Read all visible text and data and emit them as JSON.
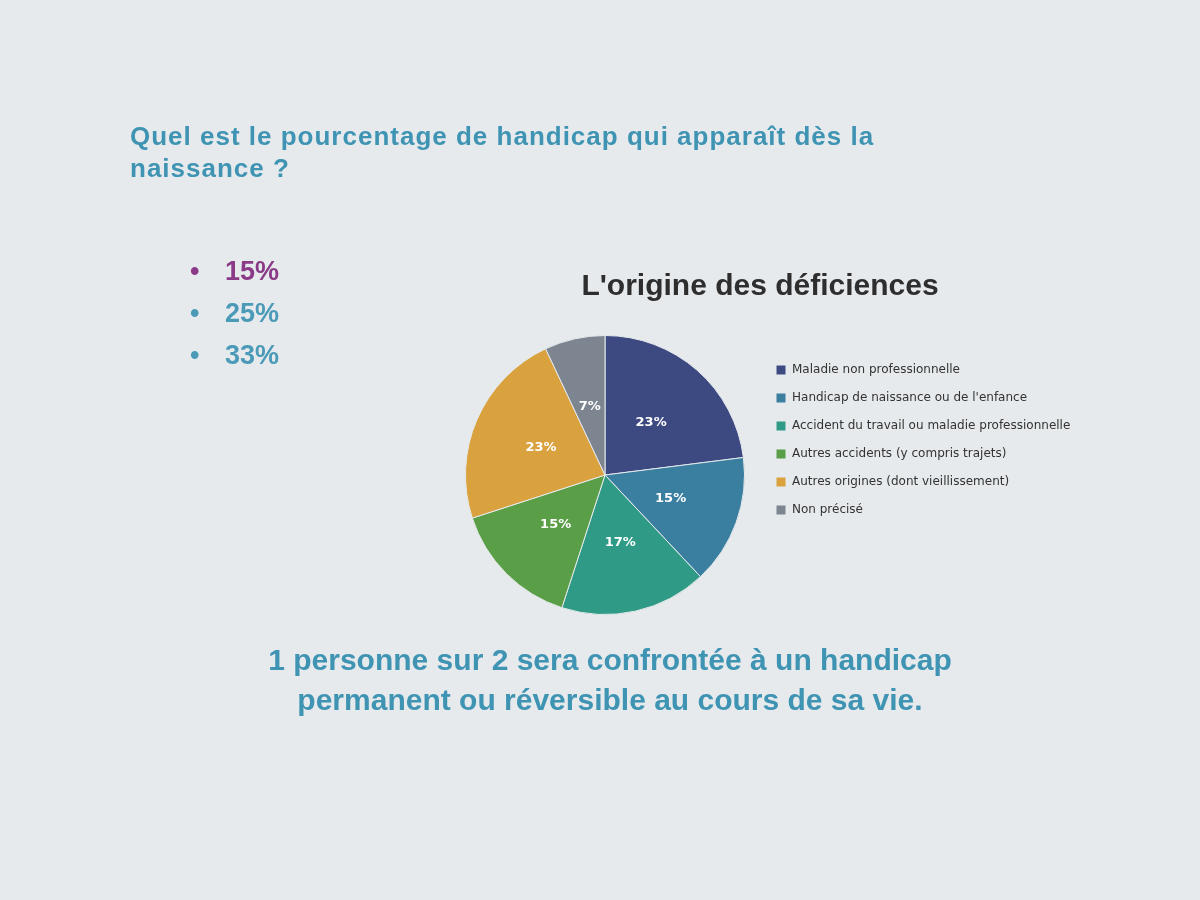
{
  "chart_data": {
    "type": "pie",
    "title": "L'origine des déficiences",
    "categories": [
      "Maladie non professionnelle",
      "Handicap de naissance ou de l'enfance",
      "Accident du travail ou maladie professionnelle",
      "Autres accidents (y compris trajets)",
      "Autres origines (dont vieillissement)",
      "Non précisé"
    ],
    "values": [
      23,
      15,
      17,
      15,
      23,
      7
    ],
    "colors": [
      "#3d4a82",
      "#3a7fa0",
      "#2f9a85",
      "#5a9e48",
      "#d9a23e",
      "#7d8590"
    ],
    "value_labels": [
      "23%",
      "15%",
      "17%",
      "15%",
      "23%",
      "7%"
    ],
    "legend": "right",
    "annotations": [
      "Quel est le pourcentage de handicap qui apparaît dès la naissance ?",
      "• 15%",
      "• 25%",
      "• 33%",
      "1 personne sur 2 sera confrontée à un handicap permanent ou réversible au cours de sa vie."
    ]
  }
}
